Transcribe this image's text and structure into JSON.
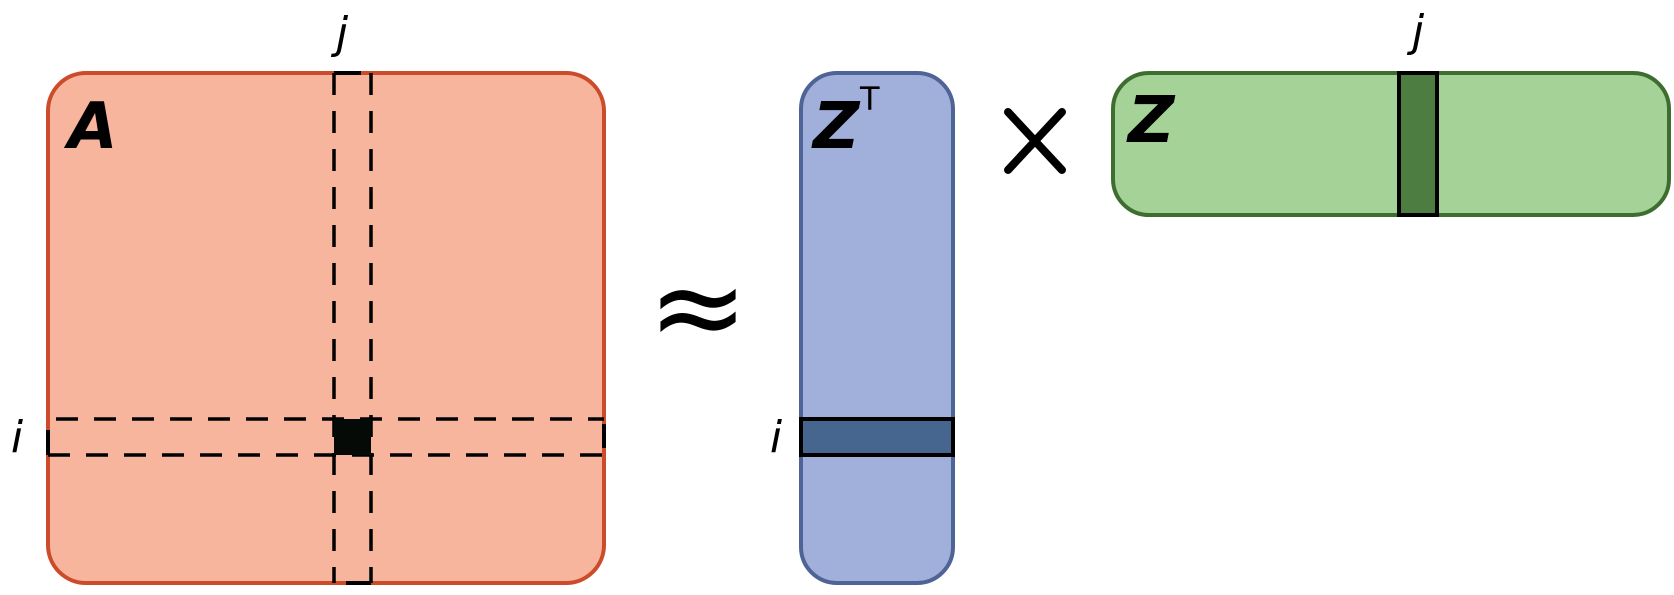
{
  "labels": {
    "matrix_a": "A",
    "matrix_zt": "Z",
    "transpose_mark": "T",
    "matrix_z": "Z",
    "row_index_a": "i",
    "col_index_a": "j",
    "row_index_zt": "i",
    "col_index_z": "j",
    "approx_symbol": "≈",
    "times_symbol": "×"
  },
  "colors": {
    "a_fill": "#f6b59c",
    "a_stroke": "#cc4b2a",
    "zt_fill": "#a1b0da",
    "zt_stroke": "#4e6396",
    "zt_row_fill": "#46668f",
    "z_fill": "#a4d297",
    "z_stroke": "#3d6e2f",
    "z_col_fill": "#4d7d40",
    "cell_fill": "#050a06",
    "ink": "#000000"
  }
}
